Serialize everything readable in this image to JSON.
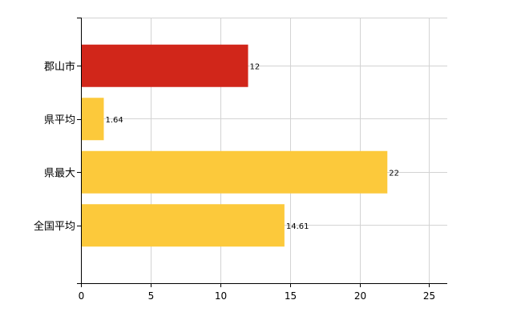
{
  "chart_data": {
    "type": "bar",
    "orientation": "horizontal",
    "categories": [
      "郡山市",
      "県平均",
      "県最大",
      "全国平均"
    ],
    "values": [
      12,
      1.64,
      22,
      14.61
    ],
    "value_labels": [
      "12",
      "1.64",
      "22",
      "14.61"
    ],
    "colors": [
      "#d1261a",
      "#fcc93b",
      "#fcc93b",
      "#fcc93b"
    ],
    "xlim": [
      0,
      26.3
    ],
    "xticks": [
      0,
      5,
      10,
      15,
      20,
      25
    ],
    "grid": true,
    "legend": "none"
  }
}
